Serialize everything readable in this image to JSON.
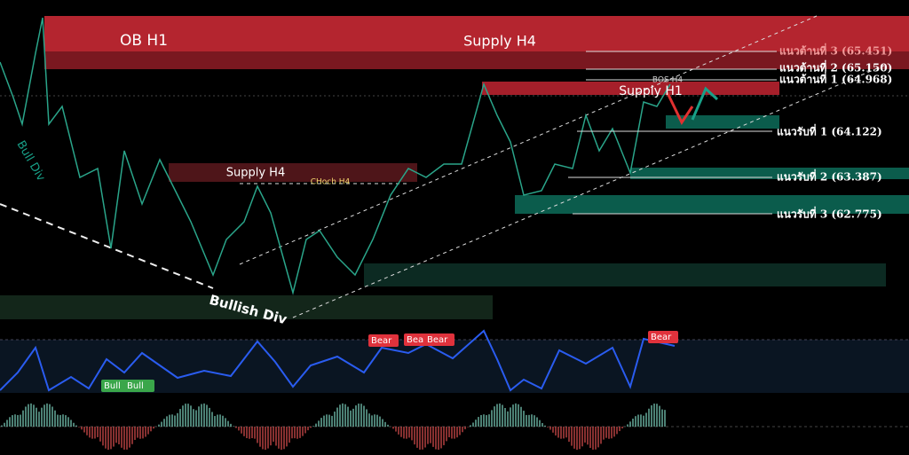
{
  "zones": {
    "ob_h1": "OB H1",
    "supply_h4_top": "Supply H4",
    "supply_h4_mid": "Supply H4",
    "supply_h1": "Supply H1"
  },
  "annotations": {
    "choch": "CHoch H4",
    "bos": "BOS H4",
    "bull_div": "Bull Div",
    "bullish_div": "Bullish Div"
  },
  "levels": [
    "แนวต้านที่ 3 (65.451)",
    "แนวต้านที่ 2 (65.150)",
    "แนวต้านที่ 1 (64.968)",
    "แนวรับที่ 1 (64.122)",
    "แนวรับที่ 2 (63.387)",
    "แนวรับที่ 3 (62.775)"
  ],
  "indicator_labels": [
    "Bear",
    "Bear",
    "Bear",
    "Bear",
    "Bull",
    "Bull"
  ]
}
